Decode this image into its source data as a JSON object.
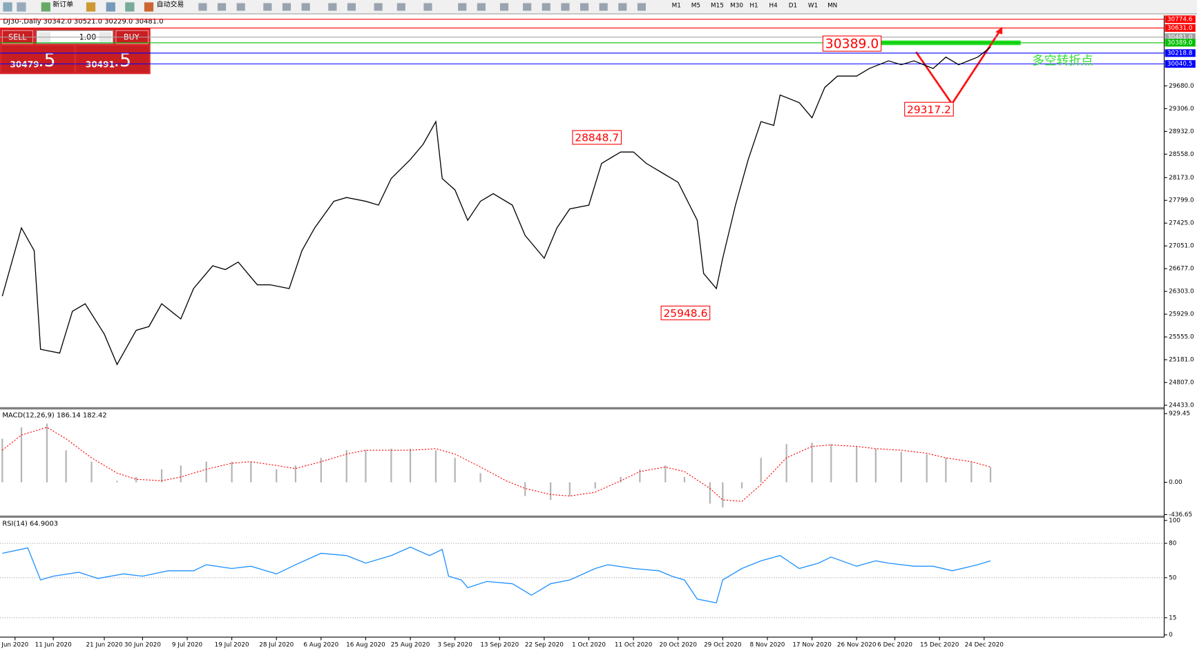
{
  "toolbar": {
    "new_order": "新订单",
    "auto_trading": "自动交易",
    "timeframes": [
      "M1",
      "M5",
      "M15",
      "M30",
      "H1",
      "H4",
      "D1",
      "W1",
      "MN"
    ]
  },
  "order_panel": {
    "sell": "SELL",
    "lots": "1.00",
    "buy": "BUY",
    "sell_price": "30479",
    "sell_price_frac": ".5",
    "buy_price": "30491",
    "buy_price_frac": ".5"
  },
  "price_chart": {
    "type": "line",
    "title": "DJ30-,Daily 30342.0 30521.0 30229.0 30481.0",
    "x": [
      0,
      3,
      5,
      6,
      9,
      11,
      13,
      16,
      18,
      21,
      23,
      25,
      28,
      30,
      33,
      35,
      37,
      40,
      42,
      45,
      47,
      49,
      52,
      54,
      57,
      59,
      61,
      64,
      66,
      68,
      69,
      71,
      73,
      75,
      77,
      80,
      82,
      85,
      87,
      89,
      92,
      94,
      97,
      99,
      101,
      104,
      106,
      109,
      110,
      112,
      113,
      115,
      117,
      119,
      121,
      122,
      125,
      127,
      129,
      131,
      134,
      136,
      139,
      141,
      143,
      146,
      148,
      150,
      153,
      155
    ],
    "values": [
      26225,
      27347,
      26973,
      25352,
      25290,
      25976,
      26100,
      25602,
      25103,
      25664,
      25726,
      26100,
      25851,
      26350,
      26724,
      26662,
      26786,
      26412,
      26412,
      26350,
      26973,
      27347,
      27784,
      27846,
      27784,
      27721,
      28158,
      28470,
      28719,
      29093,
      28158,
      27971,
      27472,
      27784,
      27909,
      27721,
      27223,
      26849,
      27347,
      27659,
      27721,
      28407,
      28594,
      28594,
      28407,
      28220,
      28096,
      27472,
      26599,
      26350,
      26849,
      27721,
      28470,
      29093,
      29031,
      29530,
      29405,
      29156,
      29654,
      29841,
      29841,
      29966,
      30091,
      30028,
      30091,
      29966,
      30153,
      30028,
      30153,
      30315
    ],
    "color": "#000000",
    "xlim": [
      0,
      182
    ],
    "ylim": [
      24408,
      30839
    ],
    "yticks": [
      {
        "value": 29680,
        "label": "29680.0"
      },
      {
        "value": 29306,
        "label": "29306.0"
      },
      {
        "value": 28932,
        "label": "28932.0"
      },
      {
        "value": 28558,
        "label": "28558.0"
      },
      {
        "value": 28173,
        "label": "28173.0"
      },
      {
        "value": 27799,
        "label": "27799.0"
      },
      {
        "value": 27425,
        "label": "27425.0"
      },
      {
        "value": 27051,
        "label": "27051.0"
      },
      {
        "value": 26677,
        "label": "26677.0"
      },
      {
        "value": 26303,
        "label": "26303.0"
      },
      {
        "value": 25929,
        "label": "25929.0"
      },
      {
        "value": 25555,
        "label": "25555.0"
      },
      {
        "value": 25181,
        "label": "25181.0"
      },
      {
        "value": 24807,
        "label": "24807.0"
      },
      {
        "value": 24433,
        "label": "24433.0"
      }
    ],
    "xticks": [
      {
        "value": 2,
        "label": "Jun 2020"
      },
      {
        "value": 8,
        "label": "11 Jun 2020"
      },
      {
        "value": 16,
        "label": "21 Jun 2020"
      },
      {
        "value": 22,
        "label": "30 Jun 2020"
      },
      {
        "value": 29,
        "label": "9 Jul 2020"
      },
      {
        "value": 36,
        "label": "19 Jul 2020"
      },
      {
        "value": 43,
        "label": "28 Jul 2020"
      },
      {
        "value": 50,
        "label": "6 Aug 2020"
      },
      {
        "value": 57,
        "label": "16 Aug 2020"
      },
      {
        "value": 64,
        "label": "25 Aug 2020"
      },
      {
        "value": 71,
        "label": "3 Sep 2020"
      },
      {
        "value": 78,
        "label": "13 Sep 2020"
      },
      {
        "value": 85,
        "label": "22 Sep 2020"
      },
      {
        "value": 92,
        "label": "1 Oct 2020"
      },
      {
        "value": 99,
        "label": "11 Oct 2020"
      },
      {
        "value": 106,
        "label": "20 Oct 2020"
      },
      {
        "value": 113,
        "label": "29 Oct 2020"
      },
      {
        "value": 120,
        "label": "8 Nov 2020"
      },
      {
        "value": 127,
        "label": "17 Nov 2020"
      },
      {
        "value": 134,
        "label": "26 Nov 2020"
      },
      {
        "value": 140,
        "label": "6 Dec 2020"
      },
      {
        "value": 147,
        "label": "15 Dec 2020"
      },
      {
        "value": 154,
        "label": "24 Dec 2020"
      }
    ],
    "levels": [
      {
        "value": 30774.6,
        "label": "30774.6",
        "color": "#ff0000"
      },
      {
        "value": 30631,
        "label": "30631.0",
        "color": "#ff0000"
      },
      {
        "value": 30481,
        "label": "30481.0",
        "color": "#a0a0a0"
      },
      {
        "value": 30389,
        "label": "30389.0",
        "color": "#00c000"
      },
      {
        "value": 30218.8,
        "label": "30218.8",
        "color": "#0000ff"
      },
      {
        "value": 30040.5,
        "label": "30040.5",
        "color": "#0000ff"
      }
    ],
    "annotations": [
      {
        "value": 30389,
        "label": "30389.0"
      },
      {
        "value": 29317.2,
        "label": "29317.2"
      },
      {
        "value": 28848.7,
        "label": "28848.7"
      },
      {
        "value": 25948.6,
        "label": "25948.6"
      }
    ],
    "note": "多空转折点"
  },
  "macd_chart": {
    "type": "bar",
    "title": "MACD(12,26,9) 186.14 182.42",
    "x": [
      0,
      3,
      7,
      10,
      14,
      18,
      21,
      25,
      28,
      32,
      36,
      39,
      43,
      46,
      50,
      54,
      57,
      61,
      64,
      68,
      71,
      75,
      79,
      82,
      86,
      89,
      93,
      97,
      100,
      104,
      107,
      111,
      113,
      116,
      119,
      123,
      127,
      130,
      134,
      137,
      141,
      145,
      148,
      152,
      155
    ],
    "histogram": {
      "color": "#b4b4b4",
      "values": [
        589,
        744,
        795,
        434,
        279,
        21,
        72,
        176,
        227,
        279,
        279,
        279,
        176,
        227,
        331,
        434,
        434,
        455,
        455,
        434,
        331,
        124,
        0,
        -186,
        -238,
        -186,
        -83,
        72,
        176,
        227,
        72,
        -289,
        -341,
        -83,
        331,
        517,
        537,
        517,
        486,
        455,
        413,
        382,
        331,
        279,
        207
      ]
    },
    "signal": {
      "color": "#ff0000",
      "values": [
        434,
        640,
        744,
        589,
        331,
        124,
        41,
        21,
        72,
        176,
        258,
        279,
        227,
        186,
        279,
        382,
        434,
        434,
        434,
        455,
        382,
        207,
        21,
        -83,
        -165,
        -186,
        -134,
        21,
        145,
        207,
        145,
        -83,
        -238,
        -258,
        -31,
        331,
        486,
        506,
        486,
        455,
        434,
        393,
        331,
        279,
        207
      ]
    },
    "xlim": [
      0,
      182
    ],
    "ylim": [
      -444,
      981
    ],
    "yticks": [
      929.45,
      {
        "value": 0,
        "label": "0.00"
      },
      -436.65
    ]
  },
  "rsi_chart": {
    "type": "line",
    "title": "RSI(14) 64.9003",
    "x": [
      0,
      4,
      6,
      8,
      12,
      15,
      19,
      22,
      26,
      30,
      32,
      36,
      39,
      43,
      46,
      50,
      54,
      57,
      61,
      64,
      67,
      69,
      70,
      72,
      73,
      76,
      80,
      83,
      86,
      89,
      93,
      95,
      99,
      103,
      105,
      107,
      109,
      112,
      113,
      116,
      119,
      122,
      125,
      128,
      130,
      134,
      137,
      139,
      143,
      146,
      149,
      153,
      155
    ],
    "values": [
      71.3,
      76,
      48,
      51.3,
      54.7,
      49.3,
      53.3,
      51.3,
      56,
      56,
      61.3,
      58,
      60,
      53.3,
      61.3,
      71.3,
      69.3,
      62.7,
      69.3,
      76.7,
      69.3,
      74.7,
      51.3,
      48,
      41.3,
      46.7,
      44.7,
      34.7,
      44.7,
      48,
      58,
      61.3,
      58,
      56,
      51.3,
      48,
      31.3,
      28,
      48,
      58,
      64.7,
      69.3,
      58,
      62.7,
      68,
      60,
      64.7,
      62.7,
      60,
      60,
      56,
      61.3,
      64.7
    ],
    "color": "#1e90ff",
    "xlim": [
      0,
      182
    ],
    "ylim": [
      0,
      100
    ],
    "yticks": [
      100,
      80,
      50,
      15,
      0
    ]
  }
}
